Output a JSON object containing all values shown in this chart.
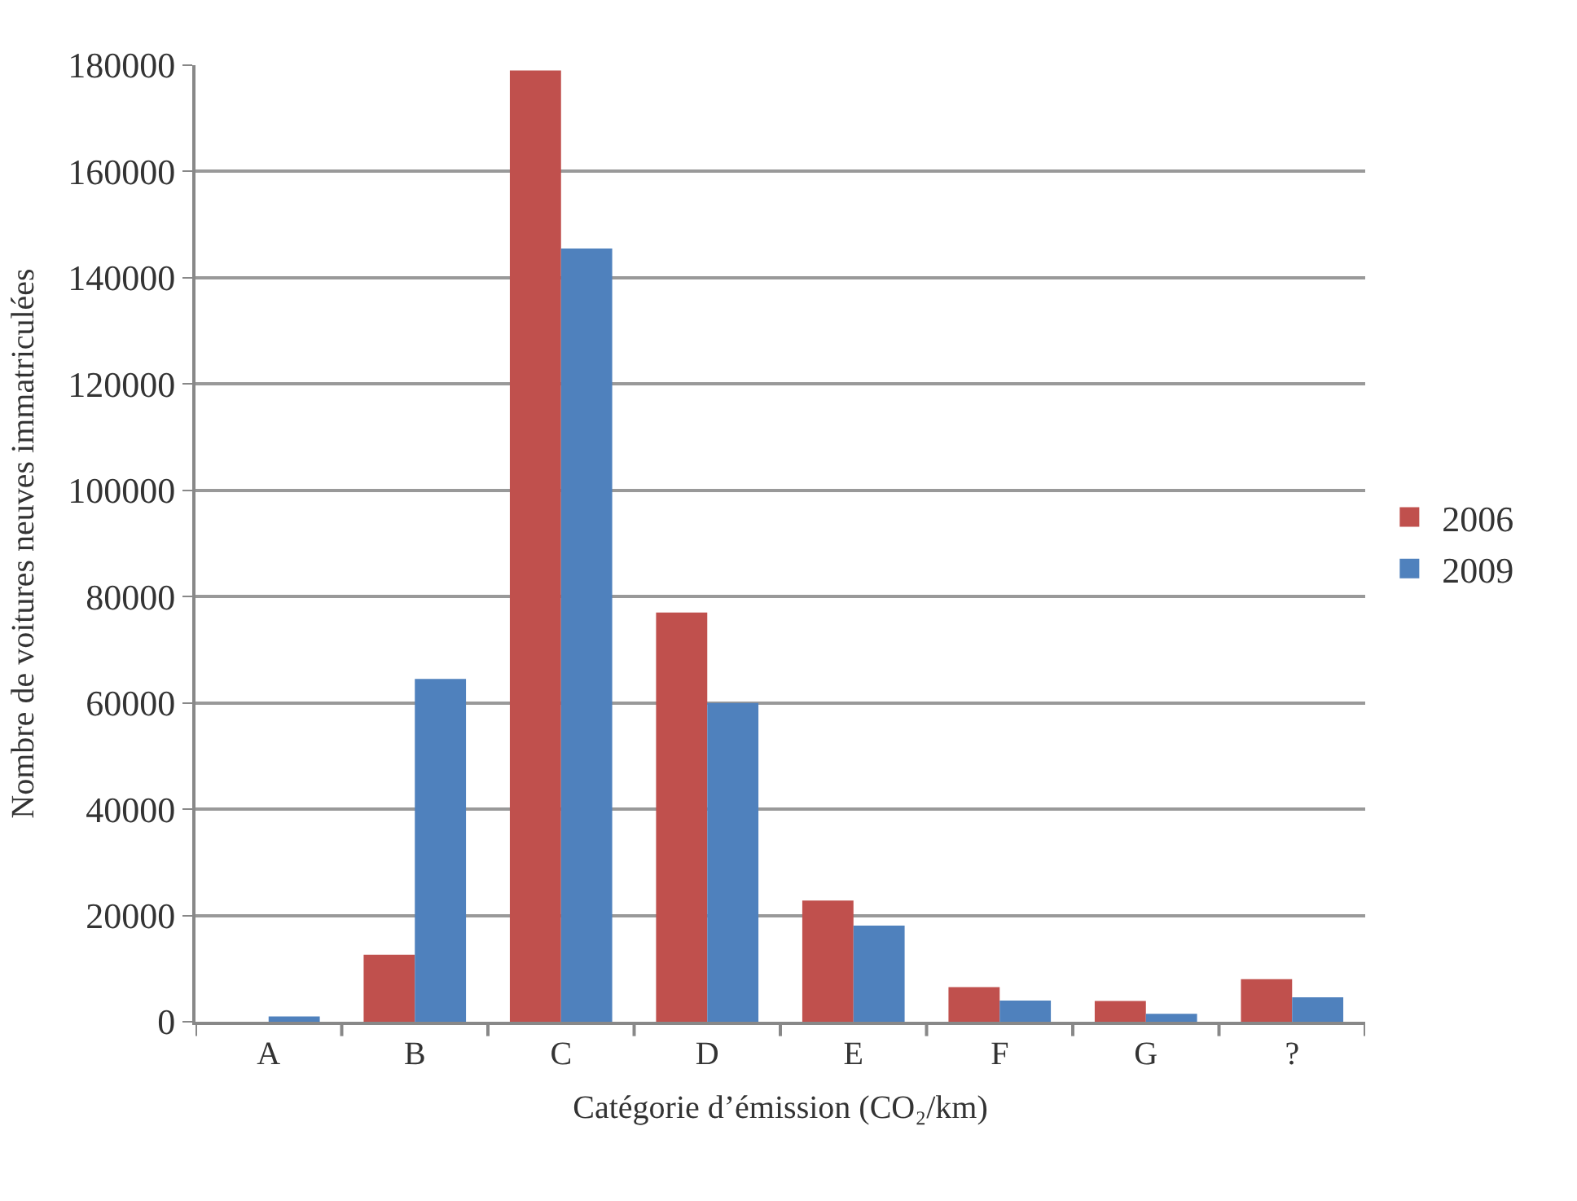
{
  "chart_data": {
    "type": "bar",
    "xlabel": "Catégorie d’émission (CO₂/km)",
    "ylabel": "Nombre de voitures neuves immatriculées",
    "categories": [
      "A",
      "B",
      "C",
      "D",
      "E",
      "F",
      "G",
      "?"
    ],
    "series": [
      {
        "name": "2006",
        "color": "#c0504d",
        "values": [
          0,
          12600,
          179000,
          77000,
          22800,
          6500,
          3900,
          8000
        ]
      },
      {
        "name": "2009",
        "color": "#4f81bd",
        "values": [
          1000,
          64500,
          145500,
          60000,
          18100,
          4000,
          1500,
          4600
        ]
      }
    ],
    "ylim": [
      0,
      180000
    ],
    "yticks": [
      0,
      20000,
      40000,
      60000,
      80000,
      100000,
      120000,
      140000,
      160000,
      180000
    ],
    "grid": "y",
    "legend": "right"
  }
}
